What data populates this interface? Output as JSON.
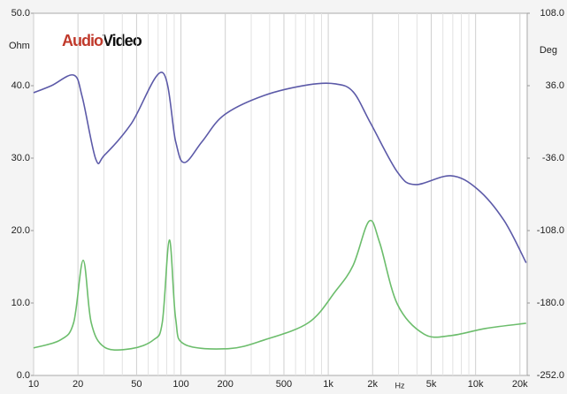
{
  "chart_data": {
    "type": "line",
    "logo": {
      "part1": "Audio",
      "part2": "Video"
    },
    "y_label": "Ohm",
    "y2_label": "Deg",
    "x_label": "Hz",
    "x_scale": "log",
    "xlim": [
      10,
      22400
    ],
    "xticks": [
      10,
      20,
      50,
      100,
      200,
      500,
      {
        "value": 1000,
        "label": "1k"
      },
      {
        "value": 2000,
        "label": "2k"
      },
      {
        "value": 5000,
        "label": "5k"
      },
      {
        "value": 10000,
        "label": "10k"
      },
      {
        "value": 20000,
        "label": "20k"
      }
    ],
    "x_minor_ticks": [
      30,
      40,
      60,
      70,
      80,
      90,
      300,
      400,
      600,
      700,
      800,
      900,
      3000,
      4000,
      6000,
      7000,
      8000,
      9000
    ],
    "ylim": [
      0,
      50
    ],
    "yticks": [
      {
        "value": 0,
        "label": "0.0"
      },
      {
        "value": 10,
        "label": "10.0"
      },
      {
        "value": 20,
        "label": "20.0"
      },
      {
        "value": 30,
        "label": "30.0"
      },
      {
        "value": 40,
        "label": "40.0"
      },
      {
        "value": 50,
        "label": "50.0"
      }
    ],
    "y2lim": [
      -252,
      108
    ],
    "y2ticks": [
      {
        "value": -252,
        "label": "-252.0"
      },
      {
        "value": -180,
        "label": "-180.0"
      },
      {
        "value": -108,
        "label": "-108.0"
      },
      {
        "value": -36,
        "label": "-36.0"
      },
      {
        "value": 36,
        "label": "36.0"
      },
      {
        "value": 108,
        "label": "108.0"
      }
    ],
    "grid": true,
    "series": [
      {
        "name": "Phase",
        "color": "#5c5aa8",
        "axis": "y2",
        "x": [
          10,
          13.2,
          18.7,
          21.4,
          26.4,
          30.3,
          46,
          74.7,
          92,
          105.7,
          139.6,
          197,
          368,
          736,
          1117,
          1475,
          1946,
          2951,
          3890,
          6776,
          10280,
          15600,
          22030
        ],
        "values": [
          29,
          36,
          46.5,
          24.6,
          -36.9,
          -33,
          -1.8,
          49.2,
          -19.3,
          -40.4,
          -19.3,
          7,
          26.3,
          36.9,
          37.8,
          29.9,
          -1.8,
          -50,
          -62.3,
          -53.5,
          -66.7,
          -98,
          -140
        ]
      },
      {
        "name": "Impedance",
        "color": "#6cbd6c",
        "x": [
          10,
          15.2,
          18.7,
          21.7,
          24.6,
          30.3,
          46,
          65,
          74.7,
          83.5,
          92,
          105.7,
          211,
          368,
          736,
          1117,
          1475,
          1893,
          2235,
          2951,
          4477,
          6776,
          11800,
          22030
        ],
        "values": [
          3.8,
          4.9,
          7.3,
          15.9,
          7.3,
          3.9,
          3.7,
          4.9,
          7.3,
          18.7,
          7.9,
          4.3,
          3.7,
          4.9,
          7.3,
          11.6,
          15.2,
          21.3,
          18.3,
          9.8,
          5.7,
          5.5,
          6.5,
          7.2
        ]
      }
    ]
  }
}
